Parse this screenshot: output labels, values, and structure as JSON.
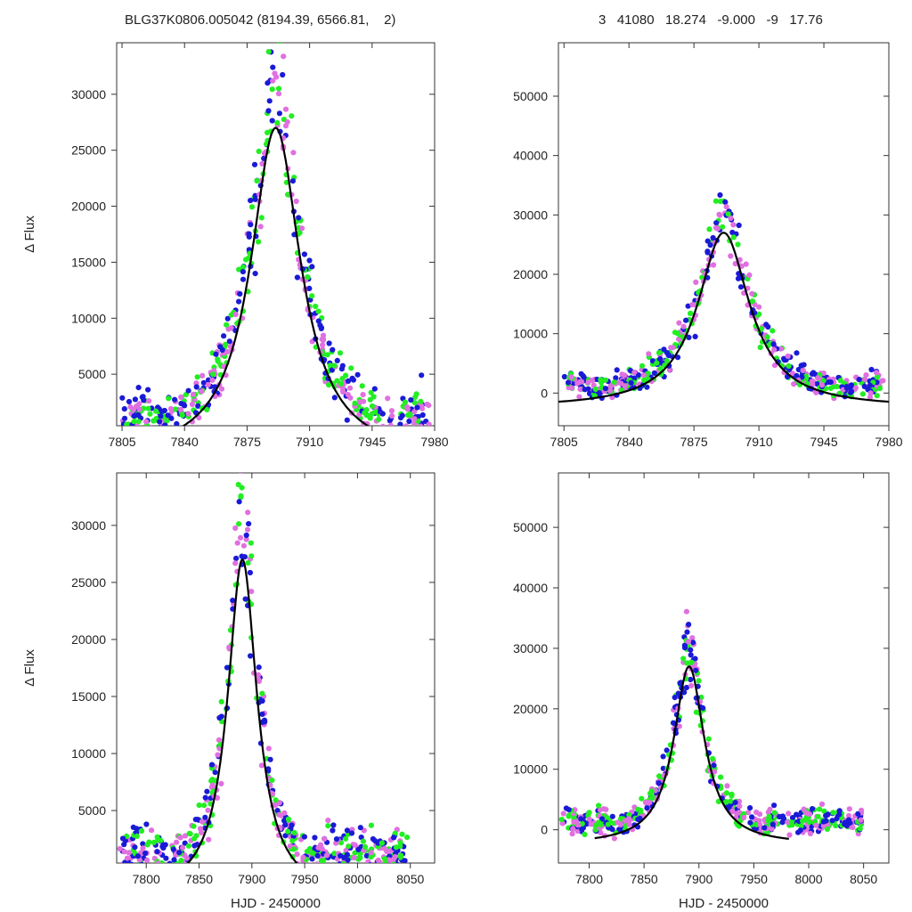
{
  "header": {
    "left": "BLG37K0806.005042 (8194.39, 6566.81,    2)",
    "right": "3   41080   18.274   -9.000   -9   17.76"
  },
  "colors": {
    "series_blue": "#1a1ad6",
    "series_magenta": "#e070e0",
    "series_green": "#22ee22",
    "model": "#000000",
    "axis": "#333333"
  },
  "chart_data": [
    {
      "type": "scatter",
      "panel": "top-left",
      "xlabel": "",
      "ylabel": "Δ Flux",
      "xlim": [
        7802,
        7980
      ],
      "ylim": [
        400,
        34600
      ],
      "xticks": [
        7805,
        7840,
        7875,
        7910,
        7945,
        7980
      ],
      "yticks": [
        5000,
        10000,
        15000,
        20000,
        25000,
        30000
      ],
      "model": {
        "t0": 7891,
        "peak": 27000,
        "tau": 17,
        "base": -2500
      }
    },
    {
      "type": "scatter",
      "panel": "top-right",
      "xlabel": "",
      "ylabel": "",
      "xlim": [
        7802,
        7980
      ],
      "ylim": [
        -5500,
        59000
      ],
      "xticks": [
        7805,
        7840,
        7875,
        7910,
        7945,
        7980
      ],
      "yticks": [
        0,
        10000,
        20000,
        30000,
        40000,
        50000
      ],
      "model": {
        "t0": 7891,
        "peak": 27000,
        "tau": 17,
        "base": -2500
      }
    },
    {
      "type": "scatter",
      "panel": "bottom-left",
      "xlabel": "HJD - 2450000",
      "ylabel": "Δ Flux",
      "xlim": [
        7772,
        8073
      ],
      "ylim": [
        400,
        34600
      ],
      "xticks": [
        7800,
        7850,
        7900,
        7950,
        8000,
        8050
      ],
      "yticks": [
        5000,
        10000,
        15000,
        20000,
        25000,
        30000
      ],
      "model": {
        "t0": 7891,
        "peak": 27000,
        "tau": 17,
        "base": -2500
      }
    },
    {
      "type": "scatter",
      "panel": "bottom-right",
      "xlabel": "HJD - 2450000",
      "ylabel": "",
      "xlim": [
        7772,
        8073
      ],
      "ylim": [
        -5500,
        59000
      ],
      "xticks": [
        7800,
        7850,
        7900,
        7950,
        8000,
        8050
      ],
      "yticks": [
        0,
        10000,
        20000,
        30000,
        40000,
        50000
      ],
      "model": {
        "t0": 7891,
        "peak": 27000,
        "tau": 17,
        "base": -2500
      }
    }
  ]
}
